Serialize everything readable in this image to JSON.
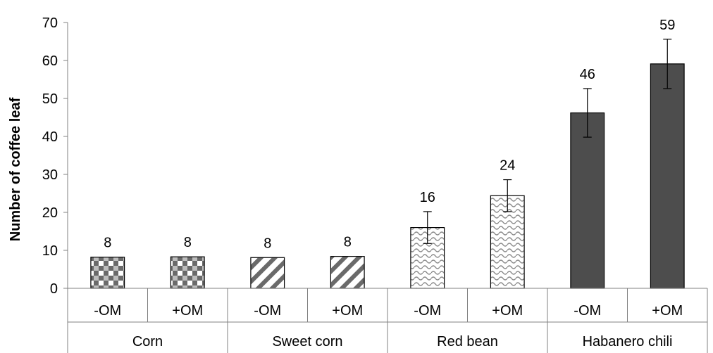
{
  "chart_data": {
    "type": "bar",
    "title": "",
    "xlabel": "",
    "ylabel": "Number of coffee leaf",
    "ylim": [
      0,
      70
    ],
    "yticks": [
      0,
      10,
      20,
      30,
      40,
      50,
      60,
      70
    ],
    "grid": false,
    "legend": "none",
    "groups": [
      {
        "name": "Corn",
        "pattern": "checker",
        "bars": [
          {
            "category": "-OM",
            "value": 8.2,
            "error": 0.1,
            "label": "8"
          },
          {
            "category": "+OM",
            "value": 8.3,
            "error": 0.1,
            "label": "8"
          }
        ]
      },
      {
        "name": "Sweet corn",
        "pattern": "diagonal-stripes",
        "bars": [
          {
            "category": "-OM",
            "value": 8.1,
            "error": 0.1,
            "label": "8"
          },
          {
            "category": "+OM",
            "value": 8.4,
            "error": 0.1,
            "label": "8"
          }
        ]
      },
      {
        "name": "Red bean",
        "pattern": "wave",
        "bars": [
          {
            "category": "-OM",
            "value": 16.0,
            "error": 4.2,
            "label": "16"
          },
          {
            "category": "+OM",
            "value": 24.4,
            "error": 4.2,
            "label": "24"
          }
        ]
      },
      {
        "name": "Habanero chili",
        "pattern": "solid-dark",
        "bars": [
          {
            "category": "-OM",
            "value": 46.2,
            "error": 6.4,
            "label": "46"
          },
          {
            "category": "+OM",
            "value": 59.1,
            "error": 6.5,
            "label": "59"
          }
        ]
      }
    ],
    "colors": {
      "bar_dark": "#4d4d4d",
      "bar_fill_light": "#ffffff",
      "pattern_gray": "#7a7a7a",
      "axis": "#808080",
      "text": "#000000"
    }
  }
}
